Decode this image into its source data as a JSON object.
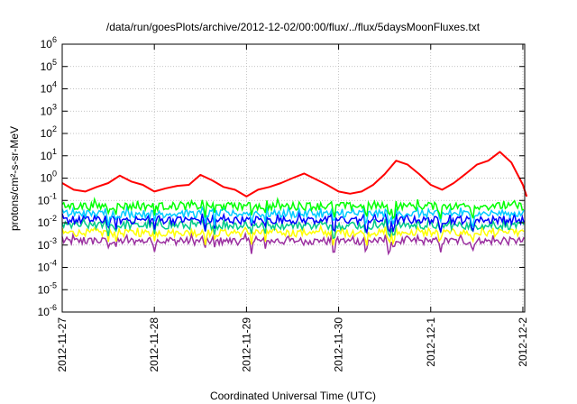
{
  "chart_data": {
    "type": "line",
    "title": "/data/run/goesPlots/archive/2012-12-02/00:00/flux/../flux/5daysMoonFluxes.txt",
    "xlabel": "Coordinated Universal Time (UTC)",
    "ylabel": "protons/cm²-s-sr-MeV",
    "y_scale": "log",
    "y_range_exponent": [
      -6,
      6
    ],
    "x_range_days": [
      "2012-11-27",
      "2012-12-02"
    ],
    "x_ticks": [
      "2012-11-27",
      "2012-11-28",
      "2012-11-29",
      "2012-11-30",
      "2012-12-1",
      "2012-12-2"
    ],
    "y_ticks_exponent": [
      -6,
      -5,
      -4,
      -3,
      -2,
      -1,
      0,
      1,
      2,
      3,
      4,
      5,
      6
    ],
    "grid": true,
    "legend": "none",
    "series": [
      {
        "color": "#ff0000",
        "x": [
          "2012-11-27 00:00",
          "2012-11-27 03:00",
          "2012-11-27 06:00",
          "2012-11-27 09:00",
          "2012-11-27 12:00",
          "2012-11-27 15:00",
          "2012-11-27 18:00",
          "2012-11-27 21:00",
          "2012-11-28 00:00",
          "2012-11-28 03:00",
          "2012-11-28 06:00",
          "2012-11-28 09:00",
          "2012-11-28 12:00",
          "2012-11-28 15:00",
          "2012-11-28 18:00",
          "2012-11-28 21:00",
          "2012-11-29 00:00",
          "2012-11-29 03:00",
          "2012-11-29 06:00",
          "2012-11-29 09:00",
          "2012-11-29 12:00",
          "2012-11-29 15:00",
          "2012-11-29 18:00",
          "2012-11-29 21:00",
          "2012-11-30 00:00",
          "2012-11-30 03:00",
          "2012-11-30 06:00",
          "2012-11-30 09:00",
          "2012-11-30 12:00",
          "2012-11-30 15:00",
          "2012-11-30 18:00",
          "2012-11-30 21:00",
          "2012-12-01 00:00",
          "2012-12-01 03:00",
          "2012-12-01 06:00",
          "2012-12-01 09:00",
          "2012-12-01 12:00",
          "2012-12-01 15:00",
          "2012-12-01 18:00",
          "2012-12-01 21:00",
          "2012-12-02 00:00",
          "2012-12-02 01:00"
        ],
        "y": [
          0.6,
          0.3,
          0.25,
          0.4,
          0.6,
          1.3,
          0.7,
          0.5,
          0.25,
          0.35,
          0.45,
          0.5,
          1.4,
          0.8,
          0.4,
          0.3,
          0.15,
          0.3,
          0.4,
          0.6,
          1.0,
          1.6,
          0.9,
          0.5,
          0.25,
          0.2,
          0.25,
          0.5,
          1.5,
          6.0,
          4.0,
          1.5,
          0.5,
          0.3,
          0.6,
          1.5,
          4.0,
          6.0,
          15.0,
          5.0,
          0.5,
          0.15
        ]
      }
    ],
    "noise_series": [
      {
        "color": "#00ff00",
        "level": 0.055
      },
      {
        "color": "#00ccff",
        "level": 0.025
      },
      {
        "color": "#0000ff",
        "level": 0.013
      },
      {
        "color": "#00cc88",
        "level": 0.0075
      },
      {
        "color": "#ffff00",
        "level": 0.0035
      },
      {
        "color": "#9b30a0",
        "level": 0.0015
      }
    ]
  }
}
